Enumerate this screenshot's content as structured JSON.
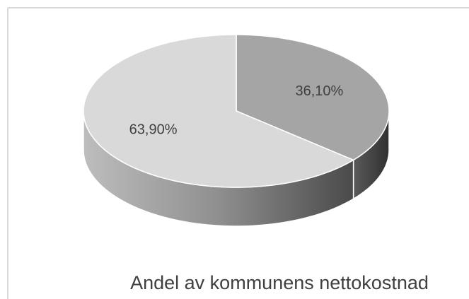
{
  "chart_data": {
    "type": "pie3d",
    "title": "Andel av kommunens nettokostnad",
    "values": [
      36.1,
      63.9
    ],
    "value_labels": [
      "36,10%",
      "63,90%"
    ],
    "colors": [
      "#a5a5a5",
      "#d9d9d9"
    ]
  }
}
